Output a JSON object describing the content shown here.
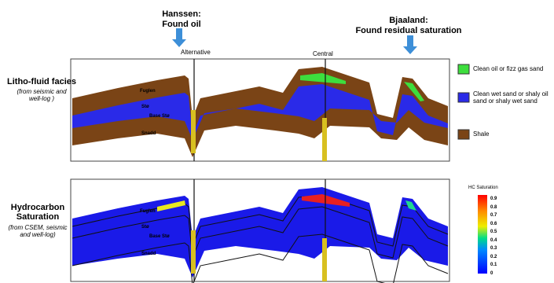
{
  "wells": [
    {
      "name": "Hanssen:",
      "result": "Found oil"
    },
    {
      "name": "Bjaaland:",
      "result": "Found residual saturation"
    }
  ],
  "well_labels": [
    "Alternative",
    "Central"
  ],
  "sections": [
    {
      "title": "Litho-fluid facies",
      "source": "(from seismic and well-log )",
      "horizons": [
        "Fuglen",
        "Stø",
        "Base Stø",
        "Snadd"
      ]
    },
    {
      "title": "Hydrocarbon Saturation",
      "source": "(from CSEM, seismic and well-log)",
      "horizons": [
        "Fuglen",
        "Stø",
        "Base Stø",
        "Snadd"
      ]
    }
  ],
  "legend": [
    "Clean oil or fizz gas sand",
    "Clean wet sand or shaly oil sand or shaly wet sand",
    "Shale"
  ],
  "colorbar": {
    "title": "HC Saturation",
    "ticks": [
      "0.9",
      "0.8",
      "0.7",
      "0.6",
      "0.5",
      "0.4",
      "0.3",
      "0.2",
      "0.1",
      "0"
    ]
  }
}
